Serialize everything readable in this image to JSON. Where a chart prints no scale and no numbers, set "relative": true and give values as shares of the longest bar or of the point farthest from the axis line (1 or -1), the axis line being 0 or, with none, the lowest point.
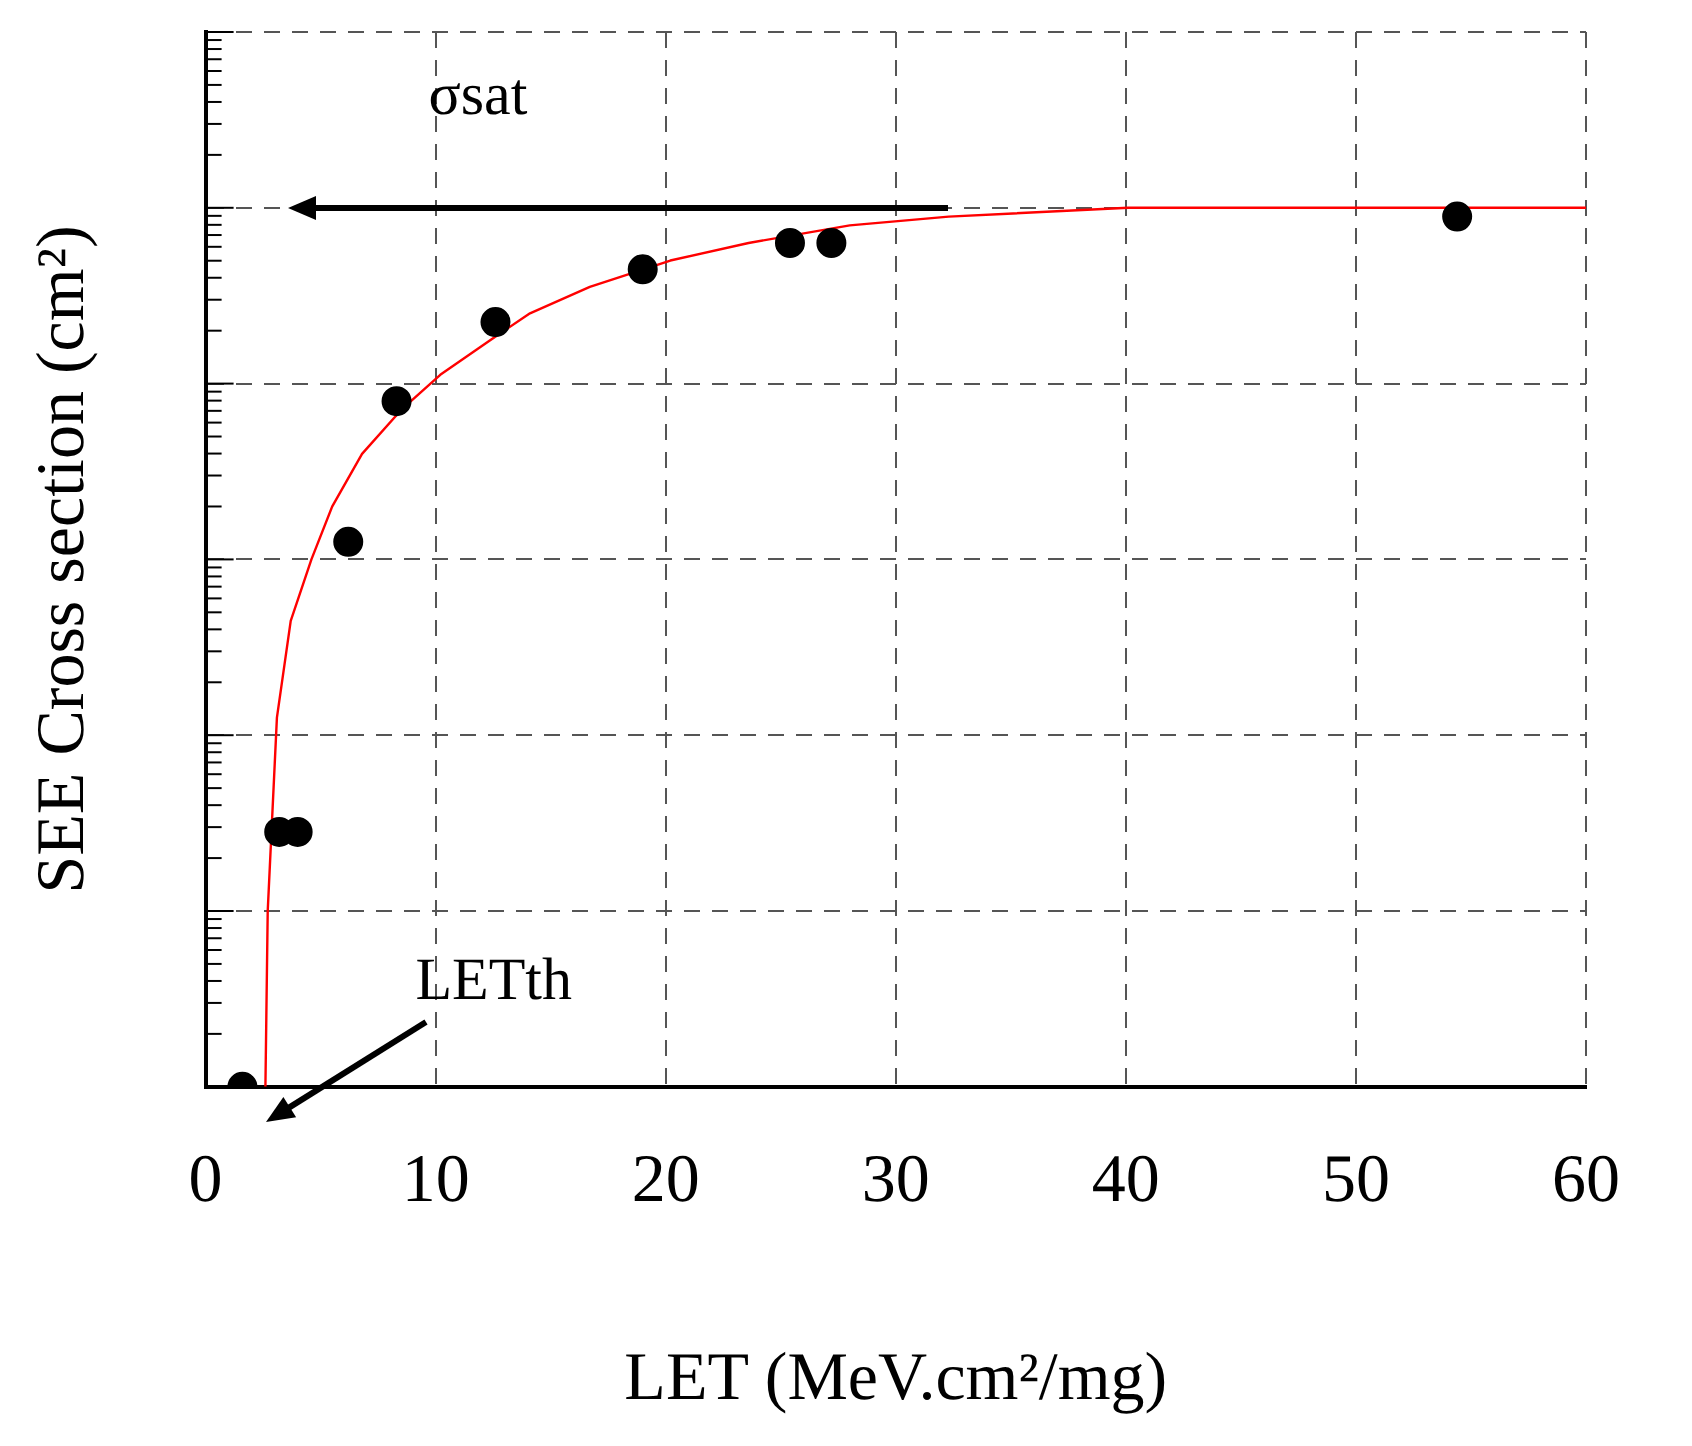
{
  "chart_data": {
    "type": "scatter",
    "xlabel": "LET (MeV.cm²/mg)",
    "ylabel": "SEE Cross section (cm²)",
    "relative": true,
    "xlim": [
      0,
      60
    ],
    "xticks": [
      0,
      10,
      20,
      30,
      40,
      50,
      60
    ],
    "grid": true,
    "legend": false,
    "series": [
      {
        "type": "scatter",
        "color": "#000000",
        "marker": "circle",
        "x": [
          1.6,
          3.2,
          4.0,
          6.2,
          8.3,
          12.6,
          19.0,
          25.4,
          27.2,
          54.4
        ],
        "values": [
          0.0,
          0.29,
          0.29,
          0.62,
          0.78,
          0.87,
          0.93,
          0.96,
          0.96,
          0.99
        ]
      },
      {
        "type": "line",
        "color": "#ff0000",
        "marker": "none",
        "line_style": "solid",
        "x": [
          2.6,
          2.7,
          3.1,
          3.7,
          4.6,
          5.5,
          6.8,
          8.5,
          10.2,
          12.4,
          14.1,
          16.7,
          20.2,
          23.6,
          28.0,
          32.3,
          40.1,
          47.9,
          60
        ],
        "values": [
          0,
          0.2,
          0.42,
          0.53,
          0.6,
          0.66,
          0.72,
          0.77,
          0.81,
          0.85,
          0.88,
          0.91,
          0.94,
          0.96,
          0.98,
          0.99,
          1.0,
          1.0,
          1.0
        ]
      }
    ],
    "annotations": [
      "σsat",
      {
        "text": "LETth",
        "x": 2.6,
        "y": 0
      }
    ]
  }
}
